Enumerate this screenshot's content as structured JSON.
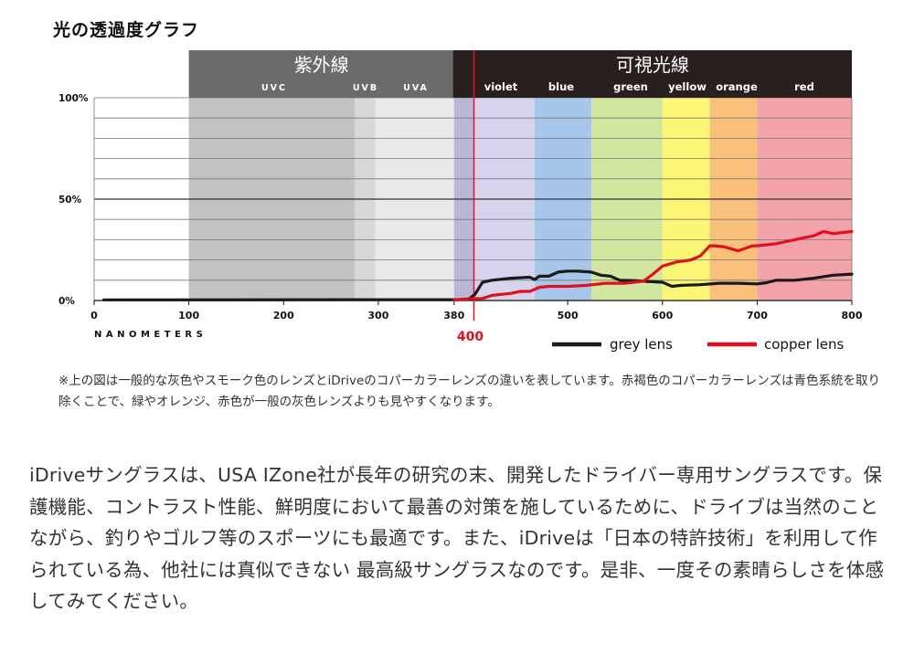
{
  "chart_data": {
    "type": "line",
    "title": "光の透過度グラフ",
    "xlabel": "NANOMETERS",
    "xlim": [
      0,
      800
    ],
    "ylim": [
      0,
      100
    ],
    "x_ticks": [
      0,
      100,
      200,
      300,
      380,
      500,
      600,
      700,
      800
    ],
    "y_ticks": [
      {
        "value": 0,
        "label": "0%"
      },
      {
        "value": 50,
        "label": "50%"
      },
      {
        "value": 100,
        "label": "100%"
      }
    ],
    "marker": {
      "x": 400,
      "label": "400",
      "color": "#e0101e"
    },
    "header_groups": [
      {
        "label": "紫外線",
        "from": 100,
        "to": 380,
        "color": "#6b6b6b"
      },
      {
        "label": "可視光線",
        "from": 380,
        "to": 800,
        "color": "#2a1f1f"
      }
    ],
    "bands": [
      {
        "label": "UVC",
        "from": 100,
        "to": 275,
        "color": "#c2c2c2"
      },
      {
        "label": "UVB",
        "from": 275,
        "to": 297,
        "color": "#d8d8d8"
      },
      {
        "label": "UVA",
        "from": 297,
        "to": 380,
        "color": "#e9e9e9"
      },
      {
        "label": "",
        "from": 380,
        "to": 400,
        "color": "#b9b6d8"
      },
      {
        "label": "violet",
        "from": 400,
        "to": 465,
        "color": "#d6d4ec"
      },
      {
        "label": "blue",
        "from": 465,
        "to": 525,
        "color": "#a6c7ea"
      },
      {
        "label": "green",
        "from": 525,
        "to": 600,
        "color": "#d2e6a0"
      },
      {
        "label": "yellow",
        "from": 600,
        "to": 650,
        "color": "#fcf576"
      },
      {
        "label": "orange",
        "from": 650,
        "to": 700,
        "color": "#f8c07a"
      },
      {
        "label": "red",
        "from": 700,
        "to": 800,
        "color": "#f2a4aa"
      }
    ],
    "series": [
      {
        "name": "grey lens",
        "color": "#1a1a1a",
        "x": [
          10,
          380,
          395,
          402,
          410,
          420,
          440,
          460,
          465,
          470,
          480,
          490,
          500,
          510,
          525,
          535,
          545,
          555,
          570,
          580,
          600,
          610,
          620,
          640,
          660,
          680,
          700,
          710,
          720,
          740,
          760,
          780,
          800
        ],
        "y": [
          0.3,
          0.4,
          0.5,
          3,
          9,
          10,
          11,
          11.5,
          10.3,
          12,
          12,
          14,
          14.5,
          14.5,
          14,
          12.5,
          12,
          10,
          9.8,
          9.5,
          9,
          7,
          7.5,
          7.8,
          8.5,
          8.5,
          8.2,
          8.8,
          10,
          10,
          11,
          12.5,
          13
        ]
      },
      {
        "name": "copper lens",
        "color": "#e0101e",
        "x": [
          380,
          400,
          410,
          420,
          430,
          440,
          450,
          460,
          470,
          480,
          500,
          520,
          540,
          560,
          580,
          590,
          600,
          615,
          630,
          640,
          650,
          655,
          665,
          680,
          695,
          700,
          720,
          740,
          760,
          770,
          780,
          800
        ],
        "y": [
          0.3,
          1,
          1,
          2.5,
          3,
          3.5,
          4.5,
          4.5,
          6.5,
          7,
          7,
          7.5,
          8.5,
          8.5,
          9.5,
          13,
          17,
          19,
          20,
          22,
          27,
          27,
          26.5,
          24.5,
          27,
          27,
          28,
          30,
          32,
          34,
          33,
          34
        ]
      }
    ]
  },
  "note_text": "※上の図は一般的な灰色やスモーク色のレンズとiDriveのコパーカラーレンズの違いを表しています。赤褐色のコパーカラーレンズは青色系統を取り除くことで、緑やオレンジ、赤色が一般の灰色レンズよりも見やすくなります。",
  "body_text": "iDriveサングラスは、USA IZone社が長年の研究の末、開発したドライバー専用サングラスです。保護機能、コントラスト性能、鮮明度において最善の対策を施しているために、ドライブは当然のことながら、釣りやゴルフ等のスポーツにも最適です。また、iDriveは「日本の特許技術」を利用して作られている為、他社には真似できない 最高級サングラスなのです。是非、一度その素晴らしさを体感してみてください。"
}
